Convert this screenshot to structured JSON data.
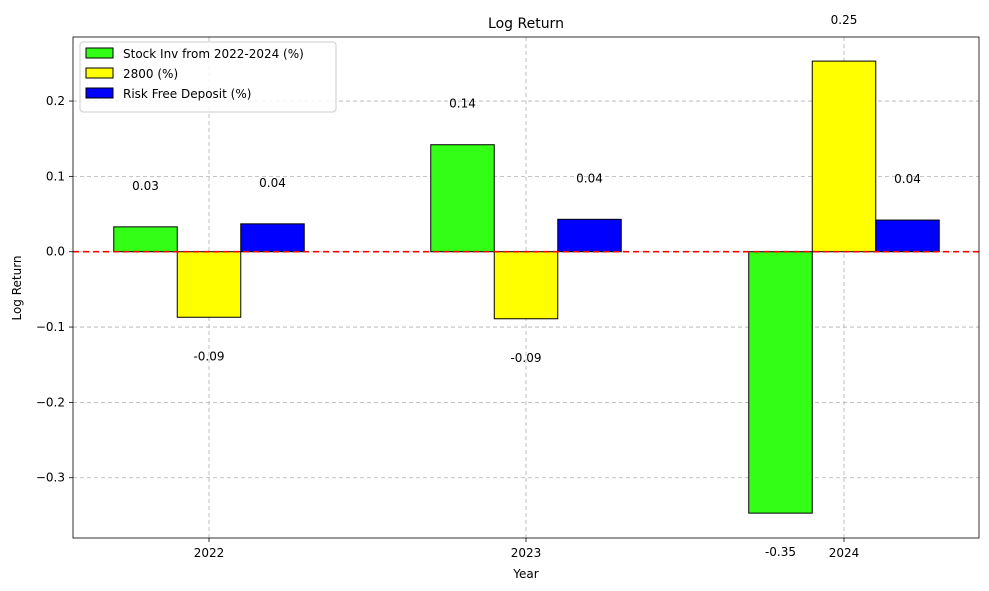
{
  "chart_data": {
    "type": "bar",
    "title": "Log Return",
    "xlabel": "Year",
    "ylabel": "Log Return",
    "categories": [
      "2022",
      "2023",
      "2024"
    ],
    "series": [
      {
        "name": "Stock Inv from 2022-2024 (%)",
        "color": "#33ff16",
        "values": [
          0.033,
          0.142,
          -0.347
        ],
        "labels": [
          "0.03",
          "0.14",
          "-0.35"
        ]
      },
      {
        "name": "2800 (%)",
        "color": "#ffff00",
        "values": [
          -0.087,
          -0.089,
          0.253
        ],
        "labels": [
          "-0.09",
          "-0.09",
          "0.25"
        ]
      },
      {
        "name": "Risk Free Deposit (%)",
        "color": "#0000ff",
        "values": [
          0.037,
          0.043,
          0.042
        ],
        "labels": [
          "0.04",
          "0.04",
          "0.04"
        ]
      }
    ],
    "ylim": [
      -0.38,
      0.285
    ],
    "yticks": [
      0.2,
      0.1,
      0.0,
      -0.1,
      -0.2,
      -0.3
    ],
    "ytick_labels": [
      "0.2",
      "0.1",
      "0.0",
      "−0.1",
      "−0.2",
      "−0.3"
    ],
    "grid": true,
    "legend_position": "top-left",
    "reference_line": {
      "value": 0.0,
      "color": "#ff0000",
      "style": "dashed"
    }
  }
}
